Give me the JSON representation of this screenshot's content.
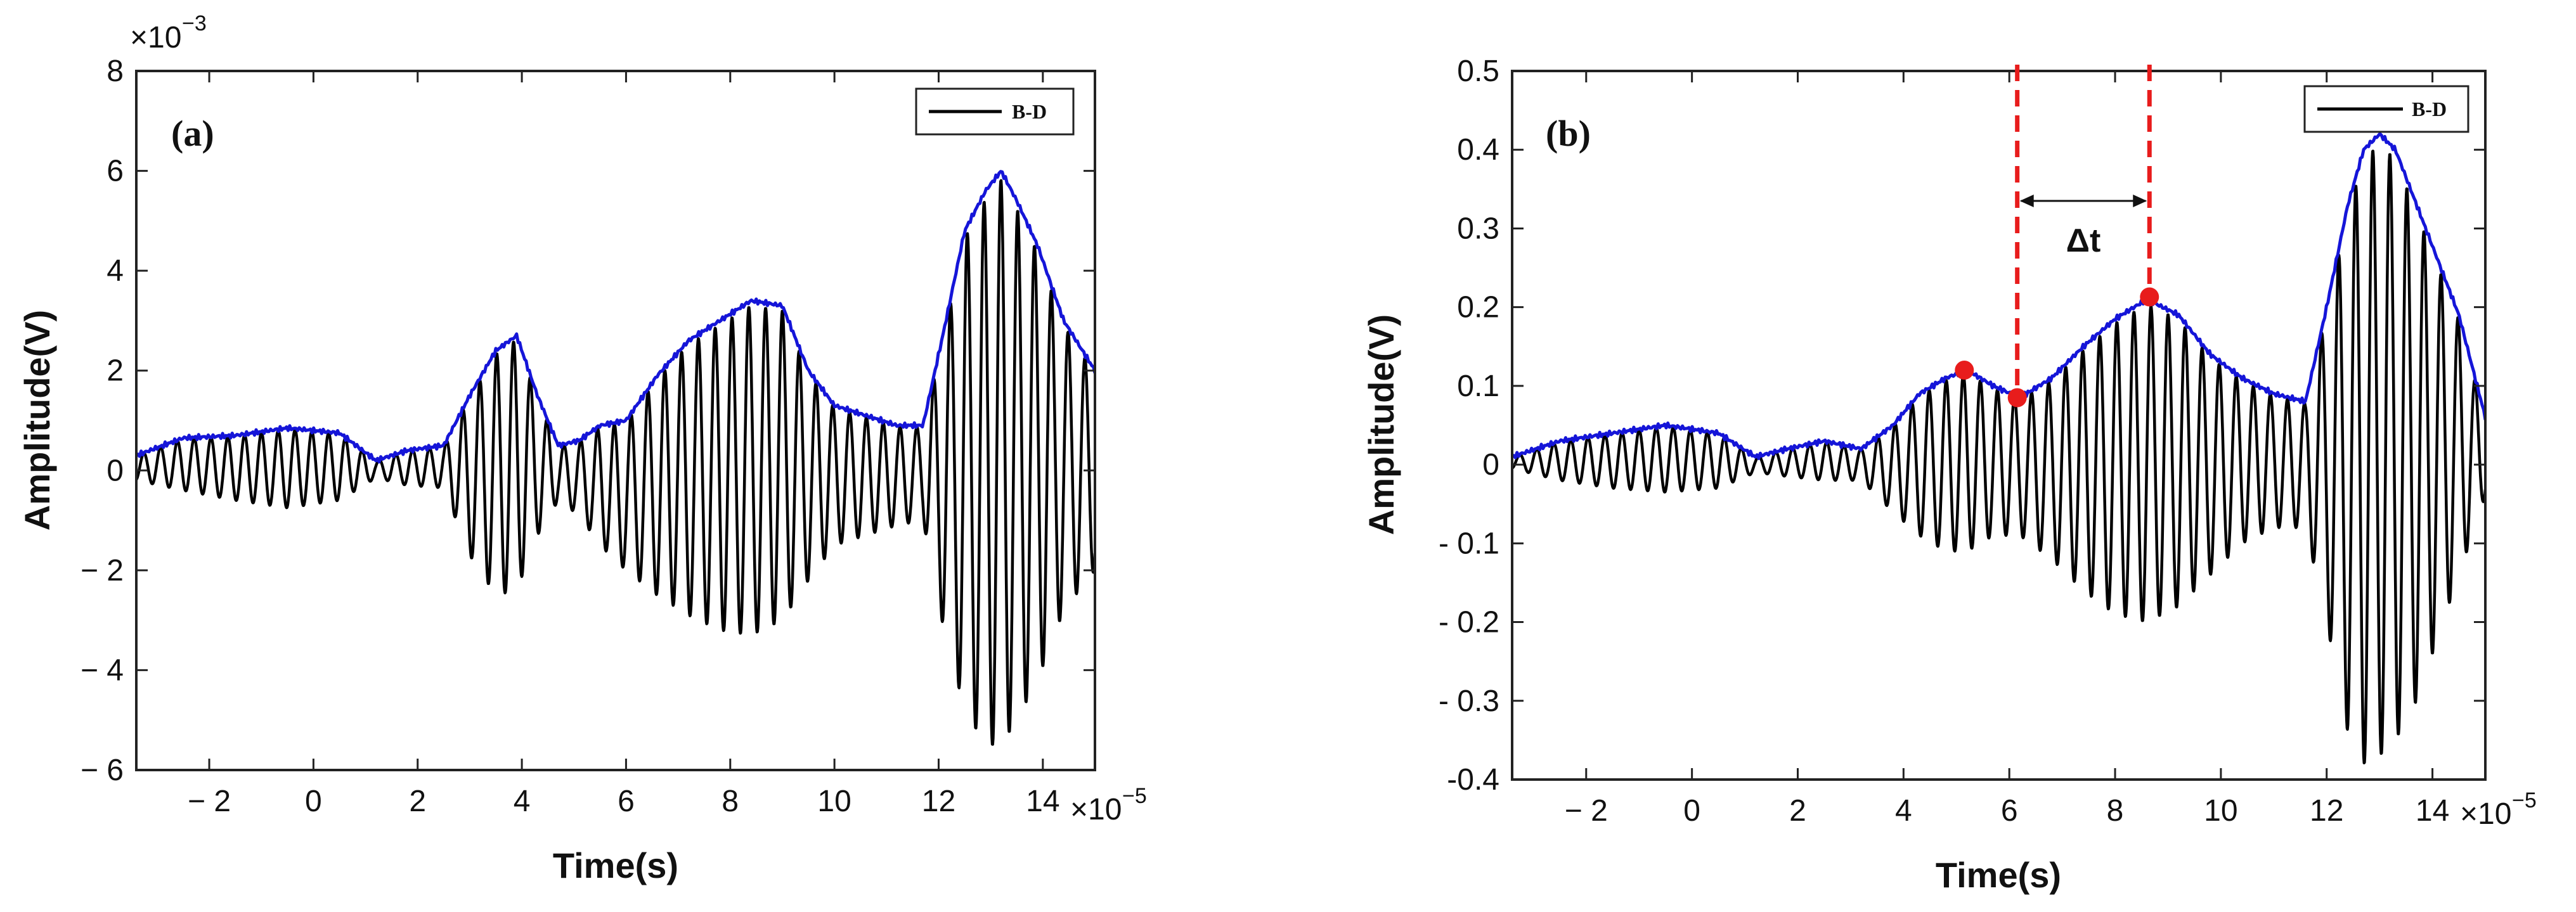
{
  "colors": {
    "signal": "#000000",
    "envelope": "#1515d8",
    "marker": "#e81c1c",
    "axis": "#222222"
  },
  "chart_data": [
    {
      "panel": "(a)",
      "type": "line",
      "xlabel": "Time(s)",
      "ylabel": "Amplitude(V)",
      "x_exponent_label": "×10",
      "x_exponent_power": "−5",
      "y_exponent_label": "×10",
      "y_exponent_power": "−3",
      "xlim": [
        -3.4,
        15
      ],
      "ylim": [
        -6,
        8
      ],
      "xticks": [
        -2,
        0,
        2,
        4,
        6,
        8,
        10,
        12,
        14
      ],
      "xtick_labels": [
        "− 2",
        "0",
        "2",
        "4",
        "6",
        "8",
        "10",
        "12",
        "14"
      ],
      "yticks": [
        -6,
        -4,
        -2,
        0,
        2,
        4,
        6,
        8
      ],
      "ytick_labels": [
        "− 6",
        "− 4",
        "− 2",
        "0",
        "2",
        "4",
        "6",
        "8"
      ],
      "legend": {
        "label": "B-D",
        "position": "top-right"
      },
      "signal": {
        "freq": 3.1,
        "phase": 0.6,
        "floor": 0.35
      },
      "series": [
        {
          "name": "envelope",
          "style": "blue line",
          "x": [
            -3.4,
            -2.5,
            -1.5,
            -0.5,
            0.5,
            1.2,
            1.8,
            2.5,
            3.0,
            3.5,
            3.9,
            4.3,
            4.7,
            5.1,
            5.5,
            6.0,
            6.6,
            7.2,
            7.8,
            8.4,
            9.0,
            9.5,
            10.0,
            10.6,
            11.2,
            11.7,
            12.1,
            12.5,
            12.9,
            13.2,
            13.5,
            13.9,
            14.4,
            15.0
          ],
          "values": [
            0.3,
            0.65,
            0.7,
            0.85,
            0.75,
            0.2,
            0.4,
            0.5,
            1.5,
            2.4,
            2.7,
            1.5,
            0.5,
            0.6,
            0.9,
            1.0,
            1.9,
            2.6,
            3.0,
            3.4,
            3.3,
            2.0,
            1.3,
            1.1,
            0.9,
            0.9,
            2.8,
            4.8,
            5.6,
            6.0,
            5.4,
            4.5,
            3.0,
            2.0
          ]
        },
        {
          "name": "lower envelope",
          "style": "hidden",
          "x": [
            -3.4,
            -2.5,
            -1.5,
            -0.5,
            0.5,
            1.2,
            1.8,
            2.5,
            3.0,
            3.5,
            3.9,
            4.3,
            4.7,
            5.1,
            5.5,
            6.0,
            6.6,
            7.2,
            7.8,
            8.4,
            9.0,
            9.5,
            10.0,
            10.6,
            11.2,
            11.7,
            12.1,
            12.5,
            12.9,
            13.2,
            13.5,
            13.9,
            14.4,
            15.0
          ],
          "values": [
            -0.2,
            -0.4,
            -0.6,
            -0.75,
            -0.6,
            -0.15,
            -0.3,
            -0.35,
            -1.7,
            -2.5,
            -2.4,
            -1.3,
            -0.6,
            -0.9,
            -1.5,
            -2.0,
            -2.5,
            -2.9,
            -3.2,
            -3.3,
            -3.0,
            -2.2,
            -1.5,
            -1.3,
            -1.1,
            -1.0,
            -3.2,
            -4.8,
            -5.5,
            -5.5,
            -5.0,
            -4.2,
            -2.8,
            -2.0
          ]
        }
      ]
    },
    {
      "panel": "(b)",
      "type": "line",
      "xlabel": "Time(s)",
      "ylabel": "Amplitude(V)",
      "x_exponent_label": "×10",
      "x_exponent_power": "−5",
      "xlim": [
        -3.4,
        15
      ],
      "ylim": [
        -0.4,
        0.5
      ],
      "xticks": [
        -2,
        0,
        2,
        4,
        6,
        8,
        10,
        12,
        14
      ],
      "xtick_labels": [
        "− 2",
        "0",
        "2",
        "4",
        "6",
        "8",
        "10",
        "12",
        "14"
      ],
      "yticks": [
        -0.4,
        -0.3,
        -0.2,
        -0.1,
        0,
        0.1,
        0.2,
        0.3,
        0.4,
        0.5
      ],
      "ytick_labels": [
        "-0.4",
        "- 0.3",
        "- 0.2",
        "- 0.1",
        "0",
        "0.1",
        "0.2",
        "0.3",
        "0.4",
        "0.5"
      ],
      "legend": {
        "label": "B-D",
        "position": "top-right"
      },
      "signal": {
        "freq": 3.1,
        "phase": 0.6,
        "floor": 0.02
      },
      "series": [
        {
          "name": "envelope",
          "style": "blue line",
          "x": [
            -3.4,
            -2.5,
            -1.5,
            -0.5,
            0.5,
            1.2,
            1.8,
            2.5,
            3.2,
            3.8,
            4.3,
            4.8,
            5.2,
            5.7,
            6.2,
            6.8,
            7.4,
            8.0,
            8.6,
            9.2,
            9.8,
            10.4,
            11.0,
            11.6,
            12.0,
            12.4,
            12.7,
            13.0,
            13.3,
            13.7,
            14.1,
            14.5,
            15.0
          ],
          "values": [
            0.01,
            0.03,
            0.04,
            0.05,
            0.04,
            0.01,
            0.02,
            0.03,
            0.02,
            0.05,
            0.09,
            0.11,
            0.12,
            0.1,
            0.085,
            0.11,
            0.15,
            0.185,
            0.21,
            0.19,
            0.14,
            0.11,
            0.09,
            0.08,
            0.2,
            0.33,
            0.4,
            0.42,
            0.4,
            0.33,
            0.26,
            0.19,
            0.06
          ]
        },
        {
          "name": "lower envelope",
          "style": "hidden",
          "x": [
            -3.4,
            -2.5,
            -1.5,
            -0.5,
            0.5,
            1.2,
            1.8,
            2.5,
            3.2,
            3.8,
            4.3,
            4.8,
            5.2,
            5.7,
            6.2,
            6.8,
            7.4,
            8.0,
            8.6,
            9.2,
            9.8,
            10.4,
            11.0,
            11.6,
            12.0,
            12.4,
            12.7,
            13.0,
            13.3,
            13.7,
            14.1,
            14.5,
            15.0
          ],
          "values": [
            -0.005,
            -0.02,
            -0.03,
            -0.035,
            -0.03,
            -0.01,
            -0.015,
            -0.02,
            -0.02,
            -0.06,
            -0.09,
            -0.11,
            -0.11,
            -0.09,
            -0.09,
            -0.12,
            -0.16,
            -0.19,
            -0.2,
            -0.18,
            -0.14,
            -0.1,
            -0.08,
            -0.08,
            -0.2,
            -0.34,
            -0.38,
            -0.37,
            -0.35,
            -0.3,
            -0.22,
            -0.14,
            -0.04
          ]
        }
      ],
      "annotations": {
        "markers": [
          {
            "x": 5.15,
            "y": 0.12
          },
          {
            "x": 6.15,
            "y": 0.085
          },
          {
            "x": 8.65,
            "y": 0.213
          }
        ],
        "dashed_lines_x": [
          6.15,
          8.65
        ],
        "arrow": {
          "x_from": 6.15,
          "x_to": 8.65,
          "y": 0.335,
          "label": "Δt",
          "label_y": 0.285
        }
      }
    }
  ]
}
